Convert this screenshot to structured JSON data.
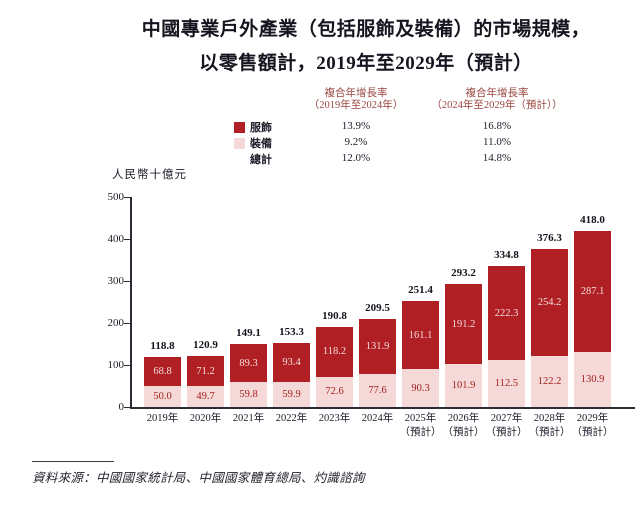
{
  "title": {
    "line1": "中國專業戶外產業（包括服飾及裝備）的市場規模，",
    "line2": "以零售額計，2019年至2029年（預計）"
  },
  "cagr_table": {
    "col1_header": [
      "複合年增長率",
      "（2019年至2024年）"
    ],
    "col2_header": [
      "複合年增長率",
      "（2024年至2029年（預計））"
    ],
    "rows": [
      {
        "label": "服飾",
        "swatch": "#b01f24",
        "cagr_2019_2024": "13.9%",
        "cagr_2024_2029": "16.8%"
      },
      {
        "label": "裝備",
        "swatch": "#f4d9d8",
        "cagr_2019_2024": "9.2%",
        "cagr_2024_2029": "11.0%"
      },
      {
        "label": "總計",
        "swatch": null,
        "cagr_2019_2024": "12.0%",
        "cagr_2024_2029": "14.8%"
      }
    ]
  },
  "chart_data": {
    "type": "bar",
    "stacked": true,
    "title": "中國專業戶外產業（包括服飾及裝備）的市場規模，以零售額計，2019年至2029年（預計）",
    "unit_label": "人民幣十億元",
    "ylim": [
      0,
      500
    ],
    "yticks": [
      0,
      100,
      200,
      300,
      400,
      500
    ],
    "grid": false,
    "legend_position": "top",
    "categories": [
      "2019年",
      "2020年",
      "2021年",
      "2022年",
      "2023年",
      "2024年",
      "2025年",
      "2026年",
      "2027年",
      "2028年",
      "2029年"
    ],
    "forecast_note": "（預計）",
    "forecast_from_index": 6,
    "series": [
      {
        "name": "服飾",
        "color": "#b01f24",
        "values": [
          68.8,
          71.2,
          89.3,
          93.4,
          118.2,
          131.9,
          161.1,
          191.2,
          222.3,
          254.2,
          287.1
        ]
      },
      {
        "name": "裝備",
        "color": "#f4d9d8",
        "values": [
          50.0,
          49.7,
          59.8,
          59.9,
          72.6,
          77.6,
          90.3,
          101.9,
          112.5,
          122.2,
          130.9
        ]
      }
    ],
    "totals": [
      118.8,
      120.9,
      149.1,
      153.3,
      190.8,
      209.5,
      251.4,
      293.2,
      334.8,
      376.3,
      418.0
    ]
  },
  "source": "資料來源：中國國家統計局、中國國家體育總局、灼識諮詢",
  "colors": {
    "apparel": "#b01f24",
    "equipment": "#f4d9d8",
    "axis": "#2b2b36",
    "text": "#1c1c28",
    "legend_header": "#9a463f"
  }
}
